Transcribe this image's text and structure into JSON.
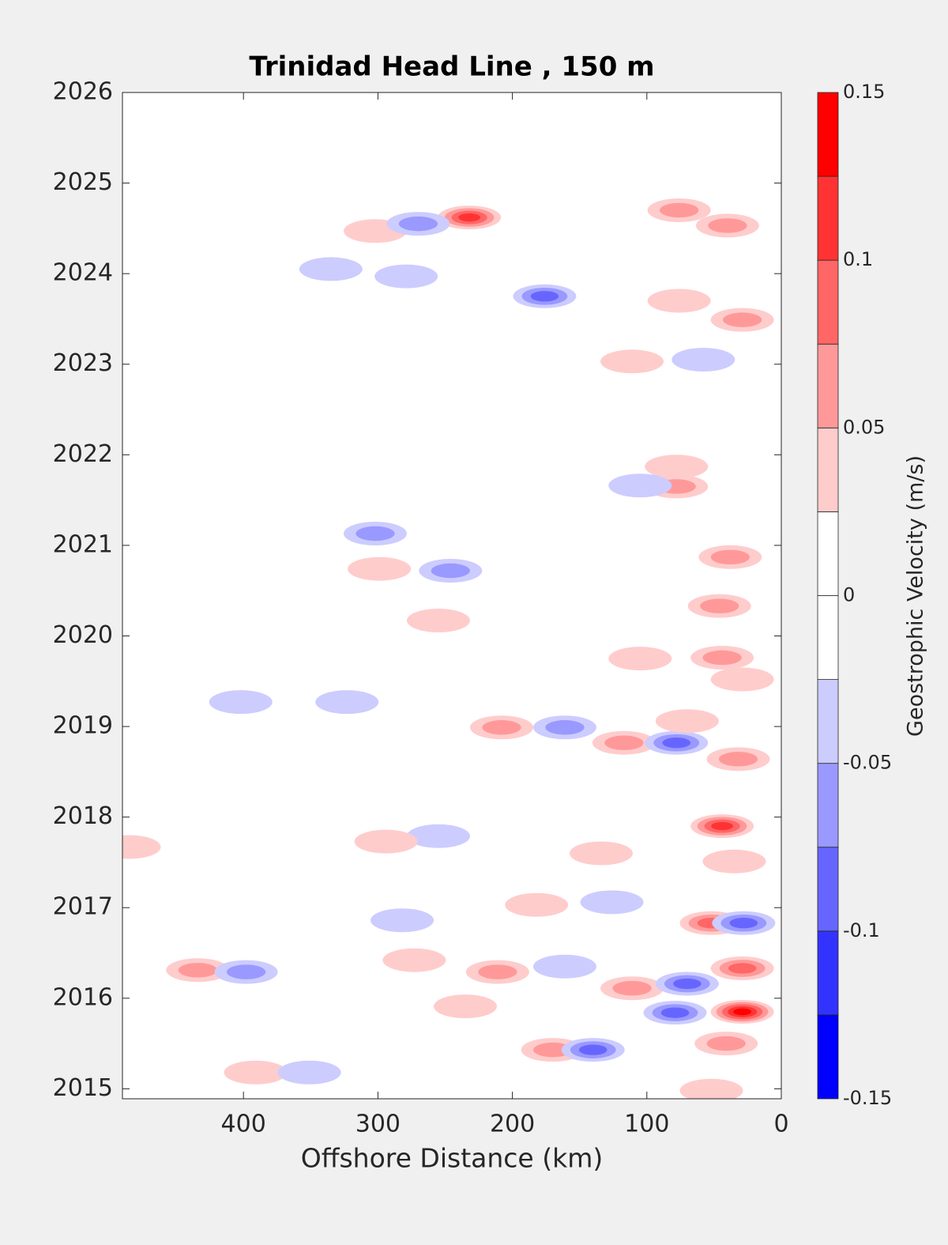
{
  "chart_data": {
    "type": "contour",
    "title": "Trinidad Head Line , 150 m",
    "x_label": "Offshore Distance (km)",
    "xlim": [
      490,
      0
    ],
    "xticks": [
      400,
      300,
      200,
      100,
      0
    ],
    "ylim": [
      2014.89,
      2026
    ],
    "yticks": [
      2015,
      2016,
      2017,
      2018,
      2019,
      2020,
      2021,
      2022,
      2023,
      2024,
      2025,
      2026
    ],
    "x": [
      29,
      232,
      176,
      335,
      279,
      76,
      40,
      29,
      76,
      302,
      270,
      111,
      58,
      78,
      78,
      105,
      302,
      246,
      299,
      38,
      46,
      255,
      44,
      105,
      208,
      161,
      117,
      78,
      32,
      70,
      402,
      323,
      44,
      255,
      294,
      35,
      134,
      182,
      126,
      52,
      28,
      282,
      434,
      398,
      273,
      211,
      161,
      111,
      70,
      79,
      29,
      41,
      170,
      140,
      391,
      351,
      235,
      485,
      29,
      52
    ],
    "y": [
      2015.85,
      2024.62,
      2023.75,
      2024.05,
      2023.97,
      2024.7,
      2024.53,
      2023.49,
      2023.7,
      2024.47,
      2024.55,
      2023.03,
      2023.05,
      2021.65,
      2021.87,
      2021.66,
      2021.13,
      2020.72,
      2020.74,
      2020.87,
      2020.33,
      2020.17,
      2019.76,
      2019.75,
      2018.99,
      2018.99,
      2018.82,
      2018.82,
      2018.64,
      2019.06,
      2019.27,
      2019.27,
      2017.9,
      2017.79,
      2017.73,
      2017.51,
      2017.6,
      2017.03,
      2017.06,
      2016.83,
      2016.83,
      2016.86,
      2016.31,
      2016.29,
      2016.42,
      2016.29,
      2016.35,
      2016.11,
      2016.16,
      2015.84,
      2016.33,
      2015.5,
      2015.43,
      2015.43,
      2015.18,
      2015.18,
      2015.91,
      2017.67,
      2019.52,
      2014.98
    ],
    "values": [
      0.14,
      0.11,
      -0.08,
      -0.04,
      -0.04,
      0.06,
      0.06,
      0.06,
      0.05,
      0.04,
      -0.06,
      0.04,
      -0.04,
      0.07,
      0.04,
      -0.04,
      -0.06,
      -0.06,
      0.05,
      0.07,
      0.07,
      0.04,
      0.06,
      0.04,
      0.07,
      -0.07,
      0.07,
      -0.08,
      0.07,
      0.04,
      -0.04,
      -0.04,
      0.11,
      -0.04,
      0.04,
      0.04,
      0.04,
      0.04,
      -0.04,
      0.08,
      -0.09,
      -0.04,
      0.07,
      -0.07,
      0.04,
      0.07,
      -0.04,
      0.07,
      -0.08,
      -0.09,
      0.08,
      0.07,
      0.07,
      -0.08,
      0.05,
      -0.05,
      0.04,
      0.04,
      0.05,
      0.05
    ],
    "colorbar": {
      "label": "Geostrophic Velocity (m/s)",
      "levels": [
        -0.15,
        -0.125,
        -0.1,
        -0.075,
        -0.05,
        -0.025,
        0,
        0.025,
        0.05,
        0.075,
        0.1,
        0.125,
        0.15
      ],
      "colors": [
        "#0000ff",
        "#3333ff",
        "#6666ff",
        "#9999ff",
        "#ccccff",
        "#ffffff",
        "#ffffff",
        "#ffcccc",
        "#ff9999",
        "#ff6666",
        "#ff3333",
        "#ff0000"
      ],
      "ticks": [
        -0.15,
        -0.1,
        -0.05,
        0,
        0.05,
        0.1,
        0.15
      ]
    }
  }
}
